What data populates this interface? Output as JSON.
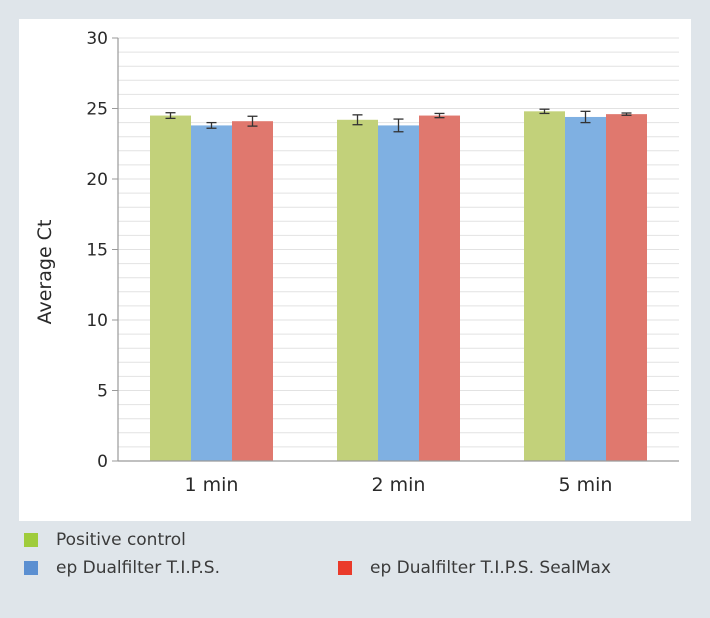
{
  "chart_data": {
    "type": "bar",
    "title": "",
    "xlabel": "",
    "ylabel": "Average Ct",
    "ylim": [
      0,
      30
    ],
    "yticks": [
      0,
      5,
      10,
      15,
      20,
      25,
      30
    ],
    "grid": true,
    "legend_position": "bottom",
    "categories": [
      "1 min",
      "2 min",
      "5 min"
    ],
    "series": [
      {
        "name": "Positive control",
        "color": "#c2d17a",
        "values": [
          24.5,
          24.2,
          24.8
        ],
        "errors": [
          0.2,
          0.35,
          0.15
        ]
      },
      {
        "name": "ep Dualfilter T.I.P.S.",
        "color": "#7fb0e2",
        "values": [
          23.8,
          23.8,
          24.4
        ],
        "errors": [
          0.2,
          0.45,
          0.4
        ]
      },
      {
        "name": "ep Dualfilter T.I.P.S. SealMax",
        "color": "#e0786e",
        "values": [
          24.1,
          24.5,
          24.6
        ],
        "errors": [
          0.35,
          0.15,
          0.08
        ]
      }
    ]
  },
  "legend": {
    "swatch_colors": [
      "#9fcc3b",
      "#5b8fd1",
      "#ea3a2a"
    ]
  }
}
